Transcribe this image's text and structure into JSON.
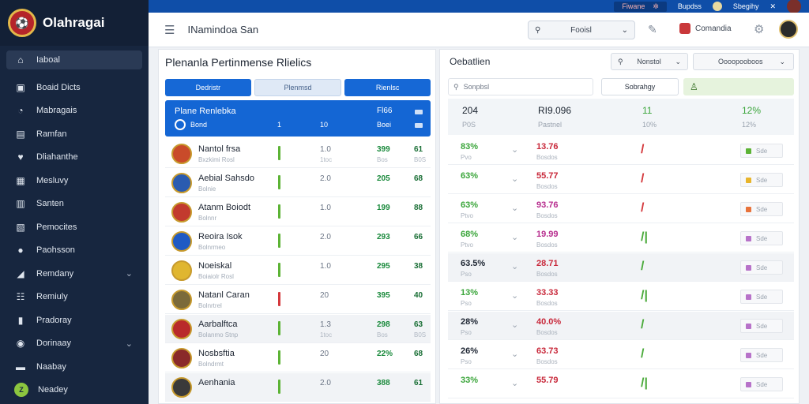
{
  "app": {
    "name": "Olahragai",
    "header_title": "INamindoa San"
  },
  "topbar": {
    "pill_text": "Fiwane",
    "link1": "Bupdss",
    "link2": "Sbegihy"
  },
  "header": {
    "search_label": "Fooisl",
    "user_label": "Comandia"
  },
  "sidebar": {
    "items": [
      {
        "label": "Iaboal",
        "icon": "⌂"
      },
      {
        "label": "Boaid Dicts",
        "icon": "▣"
      },
      {
        "label": "Mabragais",
        "icon": "◔"
      },
      {
        "label": "Ramfan",
        "icon": "▤"
      },
      {
        "label": "Dliahanthe",
        "icon": "♥"
      },
      {
        "label": "Mesluvy",
        "icon": "▦"
      },
      {
        "label": "Santen",
        "icon": "▥"
      },
      {
        "label": "Pemocites",
        "icon": "▧"
      },
      {
        "label": "Paohsson",
        "icon": "●"
      },
      {
        "label": "Remdany",
        "icon": "◢",
        "chevron": "⌄"
      },
      {
        "label": "Remiuly",
        "icon": "☷"
      },
      {
        "label": "Pradoray",
        "icon": "▮"
      },
      {
        "label": "Dorinaay",
        "icon": "◉",
        "chevron": "⌄"
      },
      {
        "label": "Naabay",
        "icon": "▬"
      },
      {
        "label": "Neadey",
        "icon": "Z"
      }
    ]
  },
  "left_panel": {
    "title": "Plenanla Pertinmense Rlielics",
    "tabs": [
      "Dedristr",
      "Plenmsd",
      "Rienlsc"
    ],
    "summary": {
      "name": "Plane Renlebka",
      "sub": "Bond",
      "v_a": "Fl66",
      "v_b": "Boei",
      "v_c": "10",
      "v_d": "1"
    },
    "rows": [
      {
        "name": "Nantol frsa",
        "sub": "Bxzkimi Rosl",
        "v1": "1.0",
        "v1s": "1toc",
        "v2": "399",
        "v2s": "Bos",
        "v3": "61",
        "v3s": "B0S",
        "bar": "#5cb335"
      },
      {
        "name": "Aebial Sahsdo",
        "sub": "Bolnie",
        "v1": "2.0",
        "v1s": "",
        "v2": "205",
        "v2s": "",
        "v3": "68",
        "v3s": "",
        "bar": "#5cb335"
      },
      {
        "name": "Atanm Boiodt",
        "sub": "Bolnnr",
        "v1": "1.0",
        "v1s": "",
        "v2": "199",
        "v2s": "",
        "v3": "88",
        "v3s": "",
        "bar": "#5cb335"
      },
      {
        "name": "Reoira Isok",
        "sub": "Bolnrmeo",
        "v1": "2.0",
        "v1s": "",
        "v2": "293",
        "v2s": "",
        "v3": "66",
        "v3s": "",
        "bar": "#5cb335"
      },
      {
        "name": "Noeiskal",
        "sub": "Boiaiolr Rosl",
        "v1": "1.0",
        "v1s": "",
        "v2": "295",
        "v2s": "",
        "v3": "38",
        "v3s": "",
        "bar": "#5cb335"
      },
      {
        "name": "Natanl Caran",
        "sub": "Bolnrtrel",
        "v1": "20",
        "v1s": "",
        "v2": "395",
        "v2s": "",
        "v3": "40",
        "v3s": "",
        "bar": "#d4383c"
      },
      {
        "name": "Aarbalftca",
        "sub": "Bolanmo Stnp",
        "v1": "1.3",
        "v1s": "1toc",
        "v2": "298",
        "v2s": "Bos",
        "v3": "63",
        "v3s": "B0S",
        "bar": "#5cb335"
      },
      {
        "name": "Nosbsftia",
        "sub": "Bolndrmt",
        "v1": "20",
        "v1s": "",
        "v2": "22%",
        "v2s": "",
        "v3": "68",
        "v3s": "",
        "bar": "#5cb335"
      },
      {
        "name": "Aenhania",
        "sub": "",
        "v1": "2.0",
        "v1s": "",
        "v2": "388",
        "v2s": "",
        "v3": "61",
        "v3s": "",
        "bar": "#5cb335"
      }
    ]
  },
  "right_panel": {
    "title": "Oebatlien",
    "dd1": "Nonstol",
    "dd2": "Oooopooboos",
    "filter_placeholder": "Sonpbsl",
    "button": "Sobrahgy",
    "head": {
      "c1": "204",
      "c1s": "P0S",
      "c2": "RI9.096",
      "c2s": "Pastnel",
      "c3": "11",
      "c3s": "10%",
      "c4": "12%",
      "c4s": "12%"
    },
    "rows": [
      {
        "pct": "83%",
        "pct_color": "#3aa53a",
        "pct_s": "Pvo",
        "val": "13.76",
        "val_color": "#c8283a",
        "val_s": "Bosdos",
        "trend": "/",
        "trend_color": "#d4383c",
        "badge": "Sde",
        "badge_color": "#5cb335"
      },
      {
        "pct": "63%",
        "pct_color": "#3aa53a",
        "pct_s": "",
        "val": "55.77",
        "val_color": "#c8283a",
        "val_s": "Bosdos",
        "trend": "/",
        "trend_color": "#d4383c",
        "badge": "Sde",
        "badge_color": "#e8b42a"
      },
      {
        "pct": "63%",
        "pct_color": "#3aa53a",
        "pct_s": "Ptvo",
        "val": "93.76",
        "val_color": "#b72d8e",
        "val_s": "Bosdos",
        "trend": "/",
        "trend_color": "#d4383c",
        "badge": "Sde",
        "badge_color": "#e8723a"
      },
      {
        "pct": "68%",
        "pct_color": "#3aa53a",
        "pct_s": "Ptvo",
        "val": "19.99",
        "val_color": "#b72d8e",
        "val_s": "Bosdos",
        "trend": "/|",
        "trend_color": "#4aaa3a",
        "badge": "Sde",
        "badge_color": "#b772c9"
      },
      {
        "pct": "63.5%",
        "pct_color": "#1d2532",
        "pct_s": "Pso",
        "val": "28.71",
        "val_color": "#c8283a",
        "val_s": "Bosdos",
        "trend": "/",
        "trend_color": "#4aaa3a",
        "badge": "Sde",
        "badge_color": "#b772c9"
      },
      {
        "pct": "13%",
        "pct_color": "#3aa53a",
        "pct_s": "Pso",
        "val": "33.33",
        "val_color": "#c8283a",
        "val_s": "Bosdos",
        "trend": "/|",
        "trend_color": "#4aaa3a",
        "badge": "Sde",
        "badge_color": "#b772c9"
      },
      {
        "pct": "28%",
        "pct_color": "#1d2532",
        "pct_s": "Pso",
        "val": "40.0%",
        "val_color": "#c8283a",
        "val_s": "Bosdos",
        "trend": "/",
        "trend_color": "#4aaa3a",
        "badge": "Sde",
        "badge_color": "#b772c9"
      },
      {
        "pct": "26%",
        "pct_color": "#1d2532",
        "pct_s": "Pso",
        "val": "63.73",
        "val_color": "#c8283a",
        "val_s": "Bosdos",
        "trend": "/",
        "trend_color": "#4aaa3a",
        "badge": "Sde",
        "badge_color": "#b772c9"
      },
      {
        "pct": "33%",
        "pct_color": "#3aa53a",
        "pct_s": "",
        "val": "55.79",
        "val_color": "#c8283a",
        "val_s": "",
        "trend": "/|",
        "trend_color": "#4aaa3a",
        "badge": "Sde",
        "badge_color": "#b772c9"
      }
    ]
  }
}
